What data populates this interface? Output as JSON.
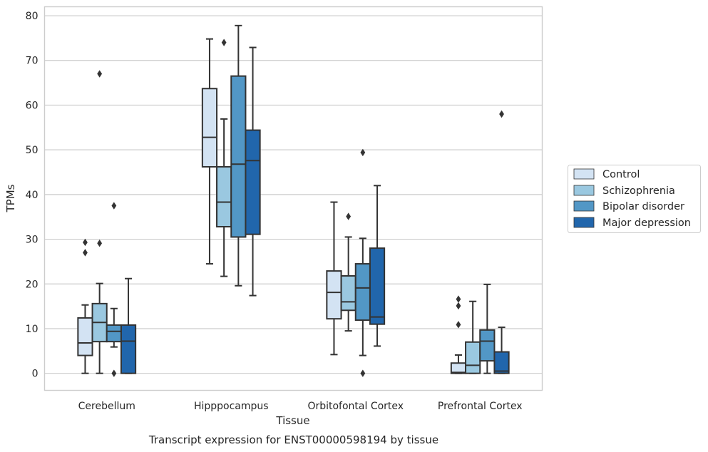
{
  "chart_data": {
    "type": "box",
    "title": "Transcript expression for ENST00000598194 by tissue",
    "xlabel": "Tissue",
    "ylabel": "TPMs",
    "ylim": [
      -3.8,
      82
    ],
    "yticks": [
      0,
      10,
      20,
      30,
      40,
      50,
      60,
      70,
      80
    ],
    "grid": "horizontal",
    "legend_position": "right",
    "categories": [
      "Cerebellum",
      "Hipppocampus",
      "Orbitofontal Cortex",
      "Prefrontal Cortex"
    ],
    "series": [
      {
        "name": "Control",
        "color": "#d3e3f3",
        "boxes": [
          {
            "whisker_low": 0,
            "q1": 4,
            "median": 6.8,
            "q3": 12.4,
            "whisker_high": 15.3,
            "outliers": [
              27,
              29.3
            ]
          },
          {
            "whisker_low": 24.5,
            "q1": 46.2,
            "median": 52.8,
            "q3": 63.7,
            "whisker_high": 74.8,
            "outliers": []
          },
          {
            "whisker_low": 4.2,
            "q1": 12.2,
            "median": 18.1,
            "q3": 22.9,
            "whisker_high": 38.3,
            "outliers": []
          },
          {
            "whisker_low": 0,
            "q1": 0,
            "median": 0.2,
            "q3": 2.3,
            "whisker_high": 4.1,
            "outliers": [
              10.9,
              15.1,
              16.6
            ]
          }
        ]
      },
      {
        "name": "Schizophrenia",
        "color": "#9ac8e0",
        "boxes": [
          {
            "whisker_low": 0,
            "q1": 7.1,
            "median": 11.4,
            "q3": 15.6,
            "whisker_high": 20.1,
            "outliers": [
              29.1,
              67
            ]
          },
          {
            "whisker_low": 21.7,
            "q1": 32.8,
            "median": 38.3,
            "q3": 46.2,
            "whisker_high": 56.9,
            "outliers": [
              74
            ]
          },
          {
            "whisker_low": 9.5,
            "q1": 14.1,
            "median": 16,
            "q3": 21.8,
            "whisker_high": 30.5,
            "outliers": [
              35.1
            ]
          },
          {
            "whisker_low": 0,
            "q1": 0,
            "median": 1.8,
            "q3": 7,
            "whisker_high": 16.1,
            "outliers": []
          }
        ]
      },
      {
        "name": "Bipolar disorder",
        "color": "#5297c6",
        "boxes": [
          {
            "whisker_low": 5.9,
            "q1": 7.1,
            "median": 9.4,
            "q3": 10.8,
            "whisker_high": 14.5,
            "outliers": [
              0,
              37.5
            ]
          },
          {
            "whisker_low": 19.6,
            "q1": 30.5,
            "median": 46.8,
            "q3": 66.5,
            "whisker_high": 77.8,
            "outliers": []
          },
          {
            "whisker_low": 4,
            "q1": 11.9,
            "median": 19.1,
            "q3": 24.5,
            "whisker_high": 30.2,
            "outliers": [
              0,
              49.4
            ]
          },
          {
            "whisker_low": 0,
            "q1": 2.8,
            "median": 7.2,
            "q3": 9.7,
            "whisker_high": 19.9,
            "outliers": []
          }
        ]
      },
      {
        "name": "Major depression",
        "color": "#2166ac",
        "boxes": [
          {
            "whisker_low": 0,
            "q1": 0,
            "median": 7.2,
            "q3": 10.8,
            "whisker_high": 21.2,
            "outliers": []
          },
          {
            "whisker_low": 17.4,
            "q1": 31.1,
            "median": 47.6,
            "q3": 54.4,
            "whisker_high": 72.9,
            "outliers": []
          },
          {
            "whisker_low": 6.1,
            "q1": 11,
            "median": 12.6,
            "q3": 28,
            "whisker_high": 42,
            "outliers": []
          },
          {
            "whisker_low": 0,
            "q1": 0,
            "median": 0.5,
            "q3": 4.8,
            "whisker_high": 10.3,
            "outliers": [
              58
            ]
          }
        ]
      }
    ]
  }
}
